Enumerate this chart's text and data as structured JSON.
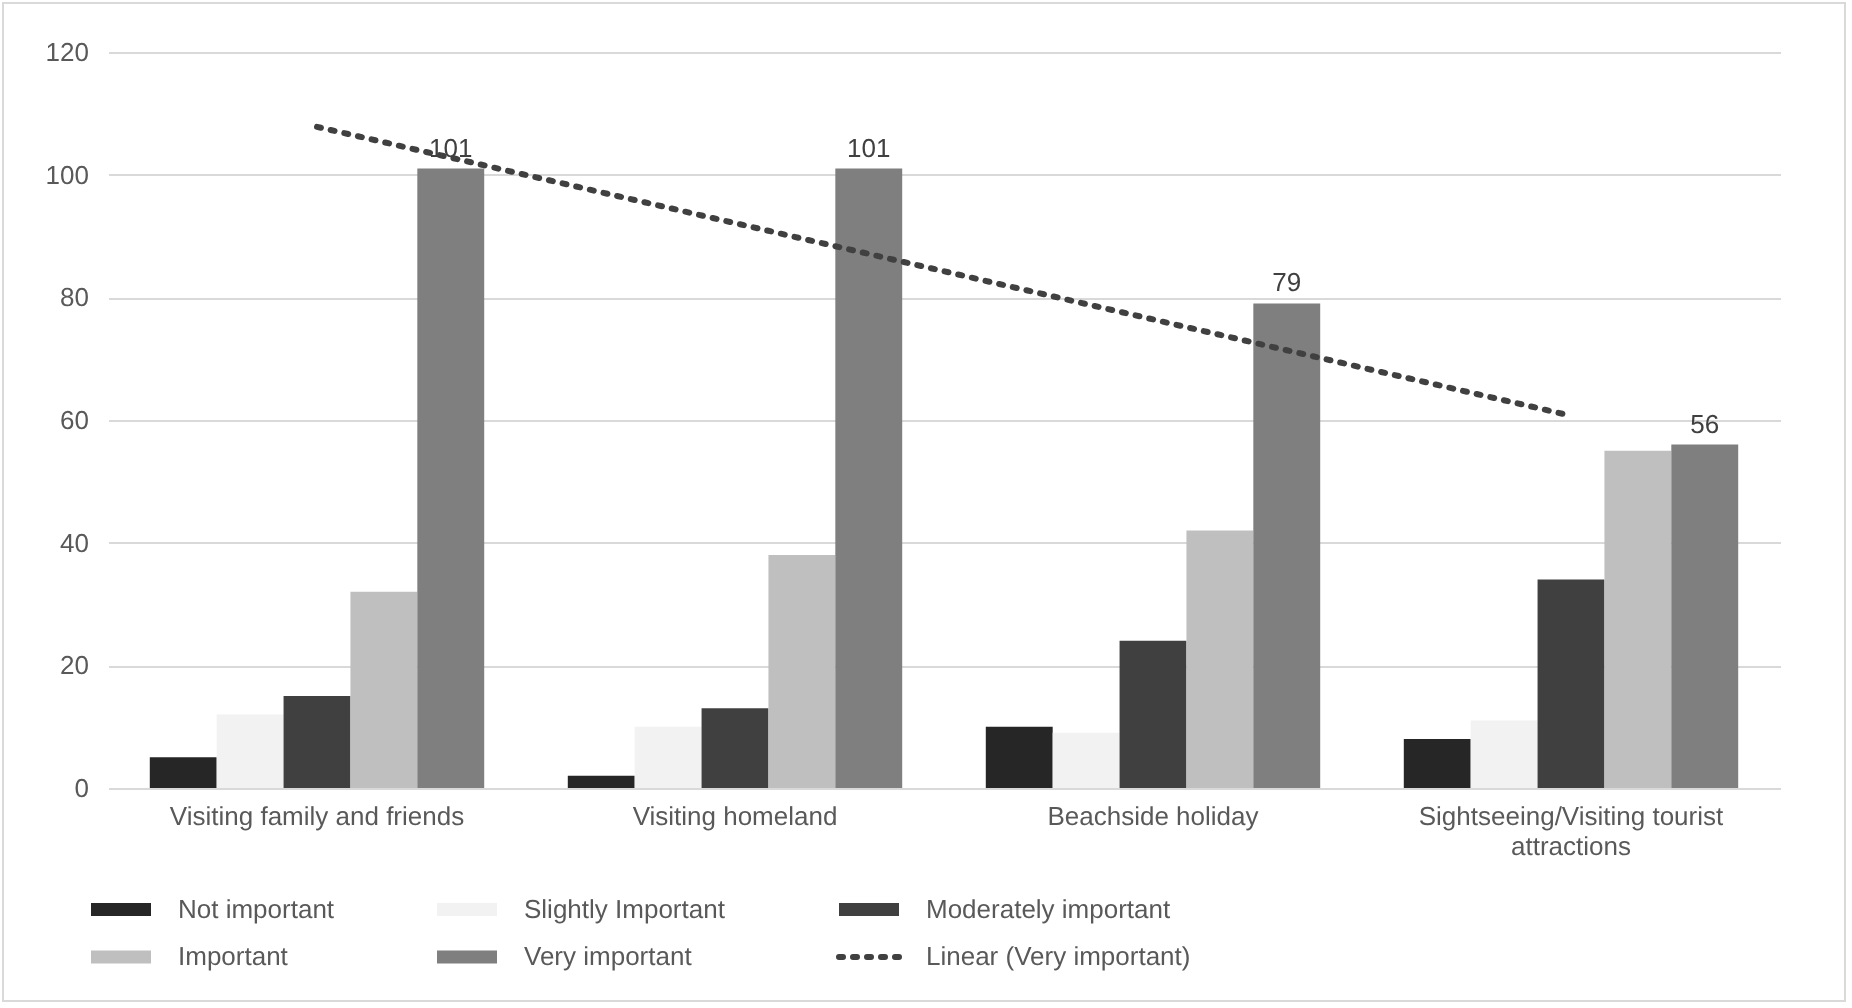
{
  "chart_data": {
    "type": "bar",
    "categories": [
      "Visiting family and friends",
      "Visiting homeland",
      "Beachside holiday",
      "Sightseeing/Visiting tourist attractions"
    ],
    "series": [
      {
        "name": "Not important",
        "color": "#262626",
        "values": [
          5,
          2,
          10,
          8
        ]
      },
      {
        "name": "Slightly Important",
        "color": "#f2f2f2",
        "values": [
          12,
          10,
          9,
          11
        ]
      },
      {
        "name": "Moderately important",
        "color": "#404040",
        "values": [
          15,
          13,
          24,
          34
        ]
      },
      {
        "name": "Important",
        "color": "#bfbfbf",
        "values": [
          32,
          38,
          42,
          55
        ]
      },
      {
        "name": "Very important",
        "color": "#7f7f7f",
        "values": [
          101,
          101,
          79,
          56
        ],
        "value_labels": [
          "101",
          "101",
          "79",
          "56"
        ]
      },
      {
        "name": "Linear (Very important)",
        "type": "line",
        "color": "#404040",
        "line_style": "dotted",
        "values": [
          107.8,
          92.1,
          76.4,
          60.7
        ]
      }
    ],
    "ylim": [
      0,
      120
    ],
    "yticks": [
      0,
      20,
      40,
      60,
      80,
      100,
      120
    ],
    "grid": "y",
    "legend": "bottom"
  }
}
